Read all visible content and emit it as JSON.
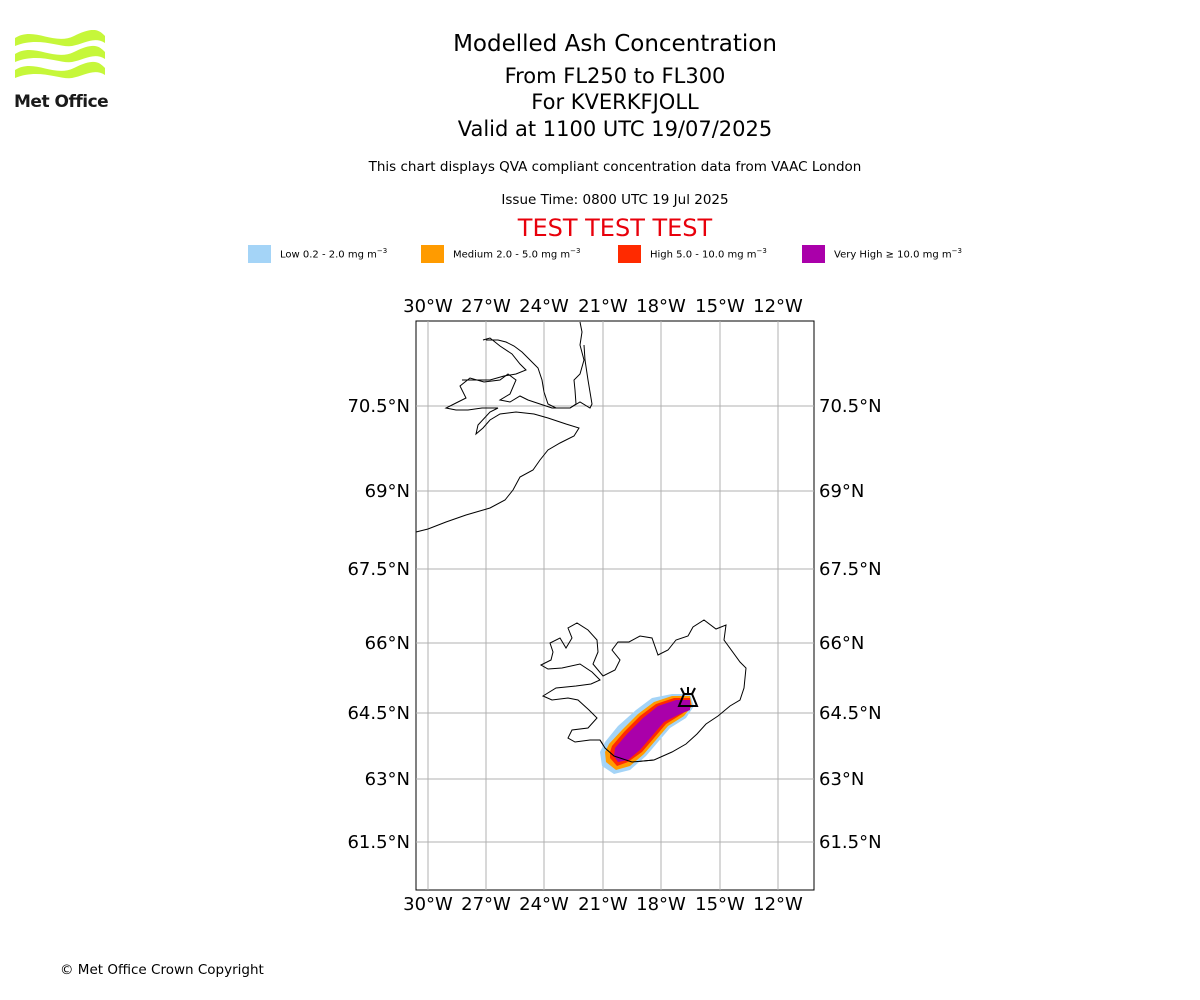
{
  "logo": {
    "text": "Met Office",
    "color": "#c6f73a"
  },
  "header": {
    "title": "Modelled Ash Concentration",
    "level": "From FL250 to FL300",
    "volcano": "For KVERKFJOLL",
    "valid": "Valid at 1100 UTC 19/07/2025",
    "description": "This chart displays QVA compliant concentration data from VAAC London",
    "issue_time": "Issue Time: 0800 UTC 19 Jul 2025",
    "test_banner": "TEST TEST TEST"
  },
  "legend": [
    {
      "name": "Low",
      "range": "0.2 - 2.0 mg m",
      "color": "#a4d4f7"
    },
    {
      "name": "Medium",
      "range": "2.0 - 5.0 mg m",
      "color": "#ff9b00"
    },
    {
      "name": "High",
      "range": "5.0 - 10.0 mg m",
      "color": "#ff2a00"
    },
    {
      "name": "Very High",
      "range": "≥ 10.0 mg m",
      "color": "#aa00aa"
    }
  ],
  "legend_unit_exponent": "−3",
  "map": {
    "lon_labels": [
      "30°W",
      "27°W",
      "24°W",
      "21°W",
      "18°W",
      "15°W",
      "12°W"
    ],
    "lat_labels": [
      "70.5°N",
      "69°N",
      "67.5°N",
      "66°N",
      "64.5°N",
      "63°N",
      "61.5°N"
    ],
    "gridlines": true,
    "volcano_icon": "volcano-icon"
  },
  "footer": {
    "copyright": "© Met Office Crown Copyright"
  }
}
